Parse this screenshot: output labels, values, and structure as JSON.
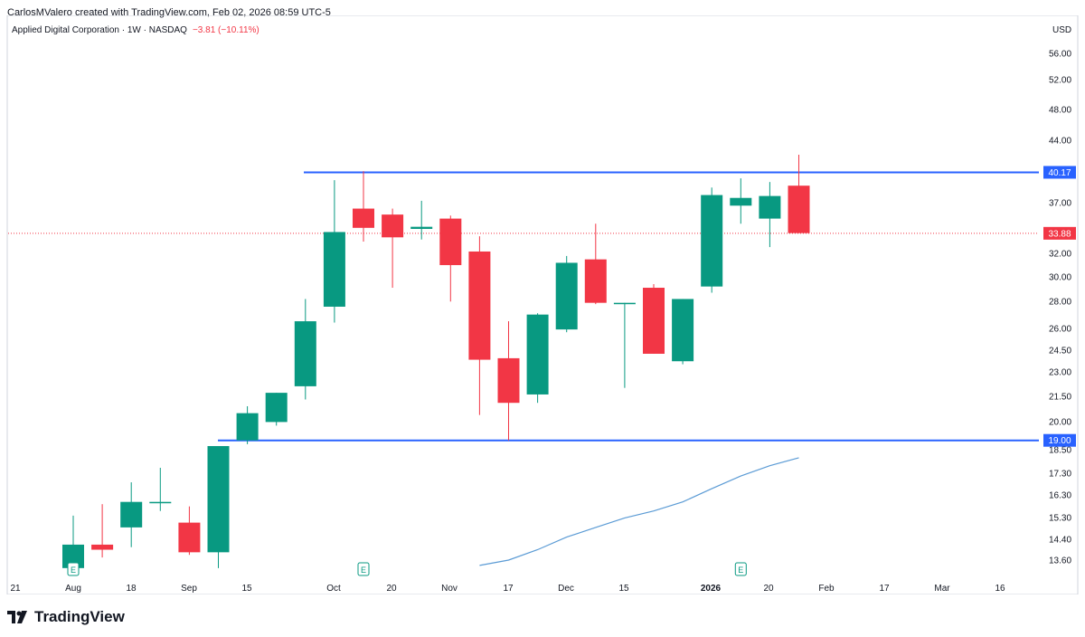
{
  "header": {
    "credit": "CarlosMValero created with TradingView.com, Feb 02, 2026 08:59 UTC-5"
  },
  "legend": {
    "title": "Applied Digital Corporation · 1W · NASDAQ",
    "change": "−3.81 (−10.11%)"
  },
  "currency": "USD",
  "brand": {
    "name": "TradingView"
  },
  "colors": {
    "up": "#089981",
    "down": "#f23645",
    "level_line": "#2962ff",
    "ma_line": "#5b9bd5"
  },
  "chart_data": {
    "type": "candlestick",
    "interval": "1W",
    "y_axis_scale": "log",
    "y_ticks": [
      "56.00",
      "52.00",
      "48.00",
      "44.00",
      "37.00",
      "32.00",
      "30.00",
      "28.00",
      "26.00",
      "24.50",
      "23.00",
      "21.50",
      "20.00",
      "18.50",
      "17.30",
      "16.30",
      "15.30",
      "14.40",
      "13.60"
    ],
    "x_ticks": [
      "21",
      "Aug",
      "18",
      "Sep",
      "15",
      "Oct",
      "20",
      "Nov",
      "17",
      "Dec",
      "15",
      "2026",
      "20",
      "Feb",
      "17",
      "Mar",
      "16"
    ],
    "candles": [
      {
        "date": "2025-07-28",
        "open": 13.3,
        "high": 15.4,
        "low": 13.3,
        "close": 14.2
      },
      {
        "date": "2025-08-04",
        "open": 14.2,
        "high": 15.9,
        "low": 13.7,
        "close": 14.0
      },
      {
        "date": "2025-08-11",
        "open": 14.9,
        "high": 16.9,
        "low": 14.1,
        "close": 16.0
      },
      {
        "date": "2025-08-18",
        "open": 16.0,
        "high": 17.6,
        "low": 15.6,
        "close": 16.0
      },
      {
        "date": "2025-08-25",
        "open": 15.1,
        "high": 15.8,
        "low": 13.8,
        "close": 13.9
      },
      {
        "date": "2025-09-01",
        "open": 13.9,
        "high": 18.7,
        "low": 13.3,
        "close": 18.7
      },
      {
        "date": "2025-09-08",
        "open": 19.0,
        "high": 20.9,
        "low": 18.8,
        "close": 20.5
      },
      {
        "date": "2025-09-15",
        "open": 20.0,
        "high": 21.7,
        "low": 19.8,
        "close": 21.7
      },
      {
        "date": "2025-09-22",
        "open": 22.1,
        "high": 28.2,
        "low": 21.3,
        "close": 26.5
      },
      {
        "date": "2025-09-29",
        "open": 27.6,
        "high": 39.3,
        "low": 26.4,
        "close": 34.0
      },
      {
        "date": "2025-10-06",
        "open": 36.3,
        "high": 40.3,
        "low": 33.1,
        "close": 34.4
      },
      {
        "date": "2025-10-13",
        "open": 35.7,
        "high": 36.3,
        "low": 29.1,
        "close": 33.5
      },
      {
        "date": "2025-10-20",
        "open": 34.3,
        "high": 37.1,
        "low": 33.3,
        "close": 34.5
      },
      {
        "date": "2025-10-27",
        "open": 35.3,
        "high": 35.6,
        "low": 28.0,
        "close": 31.0
      },
      {
        "date": "2025-11-03",
        "open": 32.2,
        "high": 33.6,
        "low": 20.4,
        "close": 23.8
      },
      {
        "date": "2025-11-10",
        "open": 23.9,
        "high": 26.5,
        "low": 19.0,
        "close": 21.1
      },
      {
        "date": "2025-11-17",
        "open": 21.6,
        "high": 27.1,
        "low": 21.1,
        "close": 27.0
      },
      {
        "date": "2025-11-24",
        "open": 25.9,
        "high": 31.8,
        "low": 25.7,
        "close": 31.2
      },
      {
        "date": "2025-12-01",
        "open": 31.5,
        "high": 34.8,
        "low": 27.8,
        "close": 27.9
      },
      {
        "date": "2025-12-08",
        "open": 27.9,
        "high": 27.9,
        "low": 22.0,
        "close": 27.9
      },
      {
        "date": "2025-12-15",
        "open": 29.1,
        "high": 29.4,
        "low": 24.2,
        "close": 24.2
      },
      {
        "date": "2025-12-22",
        "open": 23.7,
        "high": 28.2,
        "low": 23.5,
        "close": 28.2
      },
      {
        "date": "2025-12-29",
        "open": 29.2,
        "high": 38.5,
        "low": 28.7,
        "close": 37.7
      },
      {
        "date": "2026-01-05",
        "open": 36.6,
        "high": 39.5,
        "low": 34.8,
        "close": 37.4
      },
      {
        "date": "2026-01-12",
        "open": 35.3,
        "high": 39.1,
        "low": 32.6,
        "close": 37.6
      },
      {
        "date": "2026-01-19",
        "open": 38.7,
        "high": 42.2,
        "low": 33.9,
        "close": 33.9
      }
    ],
    "levels": [
      {
        "value": 40.17,
        "label": "40.17"
      },
      {
        "value": 19.0,
        "label": "19.00"
      }
    ],
    "last_price": {
      "value": 33.88,
      "label": "33.88"
    },
    "moving_average": [
      {
        "date": "2025-11-03",
        "value": 13.4
      },
      {
        "date": "2025-11-10",
        "value": 13.6
      },
      {
        "date": "2025-11-17",
        "value": 14.0
      },
      {
        "date": "2025-11-24",
        "value": 14.5
      },
      {
        "date": "2025-12-01",
        "value": 14.9
      },
      {
        "date": "2025-12-08",
        "value": 15.3
      },
      {
        "date": "2025-12-15",
        "value": 15.6
      },
      {
        "date": "2025-12-22",
        "value": 16.0
      },
      {
        "date": "2025-12-29",
        "value": 16.6
      },
      {
        "date": "2026-01-05",
        "value": 17.2
      },
      {
        "date": "2026-01-12",
        "value": 17.7
      },
      {
        "date": "2026-01-19",
        "value": 18.1
      }
    ],
    "earnings_markers": [
      {
        "date": "2025-07-28",
        "label": "E"
      },
      {
        "date": "2025-10-06",
        "label": "E"
      },
      {
        "date": "2026-01-05",
        "label": "E"
      }
    ]
  }
}
